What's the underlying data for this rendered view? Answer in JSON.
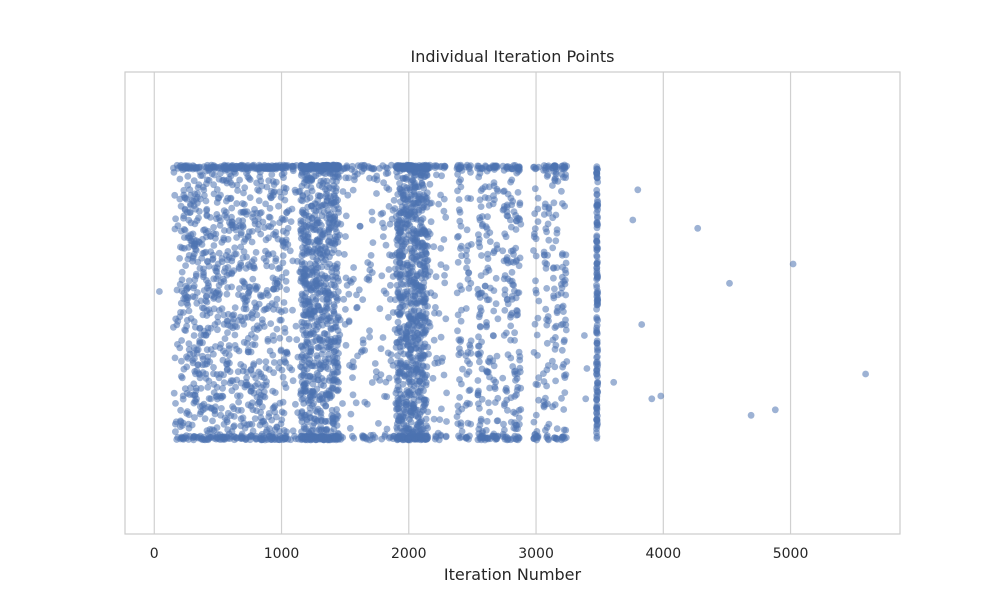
{
  "chart_data": {
    "type": "scatter",
    "title": "Individual Iteration Points",
    "xlabel": "Iteration Number",
    "ylabel": "",
    "xlim": [
      -230,
      5860
    ],
    "x_ticks": [
      0,
      1000,
      2000,
      3000,
      4000,
      5000
    ],
    "x_tick_labels": [
      "0",
      "1000",
      "2000",
      "3000",
      "4000",
      "5000"
    ],
    "y_ticks_shown": false,
    "grid": "vertical",
    "legend": "none",
    "jitter": "vertical strip jitter (y carries no data)",
    "point_color": "#4c72b0",
    "point_alpha": 0.55,
    "dense_region": {
      "x_range": [
        150,
        2300
      ],
      "most_dense": [
        [
          200,
          1050
        ],
        [
          1150,
          1450
        ],
        [
          1900,
          2150
        ]
      ]
    },
    "medium_region": {
      "x_range": [
        2300,
        3260
      ]
    },
    "vertical_column": {
      "x": 3480
    },
    "outliers": [
      {
        "x": 40,
        "y": 0.46
      },
      {
        "x": 3380,
        "y": 0.62
      },
      {
        "x": 3400,
        "y": 0.74
      },
      {
        "x": 3390,
        "y": 0.85
      },
      {
        "x": 3610,
        "y": 0.79
      },
      {
        "x": 3760,
        "y": 0.2
      },
      {
        "x": 3800,
        "y": 0.09
      },
      {
        "x": 3830,
        "y": 0.58
      },
      {
        "x": 3910,
        "y": 0.85
      },
      {
        "x": 3980,
        "y": 0.84
      },
      {
        "x": 4270,
        "y": 0.23
      },
      {
        "x": 4520,
        "y": 0.43
      },
      {
        "x": 4690,
        "y": 0.91
      },
      {
        "x": 4880,
        "y": 0.89
      },
      {
        "x": 5020,
        "y": 0.36
      },
      {
        "x": 5590,
        "y": 0.76
      }
    ]
  }
}
